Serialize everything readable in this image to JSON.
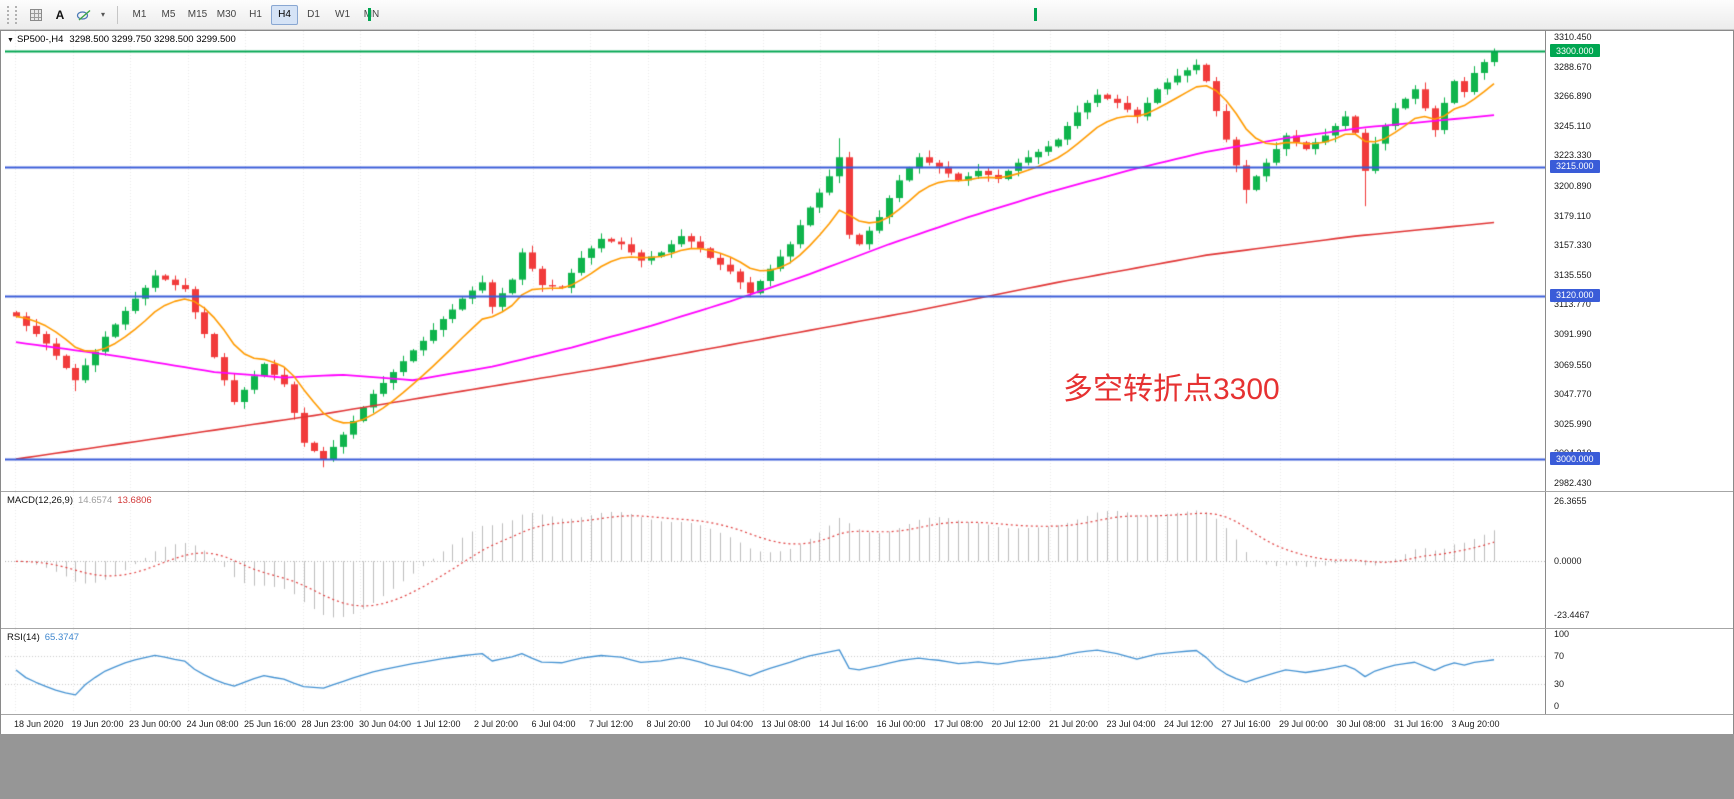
{
  "toolbar": {
    "a_button_label": "A",
    "timeframes": [
      "M1",
      "M5",
      "M15",
      "M30",
      "H1",
      "H4",
      "D1",
      "W1",
      "MN"
    ],
    "active_timeframe": "H4"
  },
  "chart_title": {
    "symbol": "SP500-,H4",
    "ohlc": "3298.500 3299.750 3298.500 3299.500"
  },
  "annotation": {
    "text": "多空转折点3300",
    "color": "#e63232"
  },
  "indicators": {
    "macd": {
      "label": "MACD(12,26,9)",
      "value_main": "14.6574",
      "value_signal": "13.6806"
    },
    "rsi": {
      "label": "RSI(14)",
      "value": "65.3747"
    }
  },
  "chart_data": {
    "type": "candlestick+indicators",
    "symbol": "SP500-",
    "timeframe": "H4",
    "price_range": [
      2982.43,
      3310.45
    ],
    "price_ticks": [
      {
        "v": 3310.45,
        "t": "3310.450"
      },
      {
        "v": 3288.67,
        "t": "3288.670"
      },
      {
        "v": 3266.89,
        "t": "3266.890"
      },
      {
        "v": 3245.11,
        "t": "3245.110"
      },
      {
        "v": 3223.33,
        "t": "3223.330"
      },
      {
        "v": 3200.89,
        "t": "3200.890"
      },
      {
        "v": 3179.11,
        "t": "3179.110"
      },
      {
        "v": 3157.33,
        "t": "3157.330"
      },
      {
        "v": 3135.55,
        "t": "3135.550"
      },
      {
        "v": 3113.77,
        "t": "3113.770"
      },
      {
        "v": 3091.99,
        "t": "3091.990"
      },
      {
        "v": 3069.55,
        "t": "3069.550"
      },
      {
        "v": 3047.77,
        "t": "3047.770"
      },
      {
        "v": 3025.99,
        "t": "3025.990"
      },
      {
        "v": 3004.21,
        "t": "3004.210"
      },
      {
        "v": 2982.43,
        "t": "2982.430"
      }
    ],
    "time_labels": [
      "18 Jun 2020",
      "19 Jun 20:00",
      "23 Jun 00:00",
      "24 Jun 08:00",
      "25 Jun 16:00",
      "28 Jun 23:00",
      "30 Jun 04:00",
      "1 Jul 12:00",
      "2 Jul 20:00",
      "6 Jul 04:00",
      "7 Jul 12:00",
      "8 Jul 20:00",
      "10 Jul 04:00",
      "13 Jul 08:00",
      "14 Jul 16:00",
      "16 Jul 00:00",
      "17 Jul 08:00",
      "20 Jul 12:00",
      "21 Jul 20:00",
      "23 Jul 04:00",
      "24 Jul 12:00",
      "27 Jul 16:00",
      "29 Jul 00:00",
      "30 Jul 08:00",
      "31 Jul 16:00",
      "3 Aug 20:00"
    ],
    "levels": [
      {
        "value": 3300,
        "label": "3300.000",
        "color": "#00a651"
      },
      {
        "value": 3215,
        "label": "3215.000",
        "color": "#3a5cd8"
      },
      {
        "value": 3120,
        "label": "3120.000",
        "color": "#3a5cd8"
      },
      {
        "value": 3000,
        "label": "3000.000",
        "color": "#3a5cd8"
      }
    ],
    "open_first": 3108,
    "closes": [
      3105,
      3098,
      3092,
      3085,
      3076,
      3067,
      3058,
      3069,
      3079,
      3090,
      3099,
      3109,
      3118,
      3126,
      3135,
      3132,
      3128,
      3125,
      3108,
      3092,
      3075,
      3058,
      3042,
      3051,
      3061,
      3070,
      3062,
      3055,
      3034,
      3012,
      3006,
      3000,
      3009,
      3018,
      3028,
      3038,
      3048,
      3056,
      3064,
      3072,
      3080,
      3087,
      3095,
      3103,
      3110,
      3118,
      3124,
      3130,
      3112,
      3122,
      3132,
      3152,
      3140,
      3128,
      3127,
      3126,
      3137,
      3148,
      3155,
      3162,
      3160,
      3158,
      3152,
      3146,
      3149,
      3152,
      3158,
      3164,
      3160,
      3155,
      3148,
      3143,
      3138,
      3130,
      3122,
      3131,
      3140,
      3149,
      3158,
      3172,
      3185,
      3196,
      3208,
      3222,
      3165,
      3158,
      3168,
      3178,
      3192,
      3205,
      3214,
      3222,
      3218,
      3215,
      3210,
      3205,
      3208,
      3212,
      3209,
      3206,
      3212,
      3218,
      3222,
      3226,
      3230,
      3235,
      3245,
      3255,
      3262,
      3268,
      3265,
      3262,
      3257,
      3252,
      3262,
      3272,
      3277,
      3282,
      3286,
      3290,
      3278,
      3256,
      3235,
      3216,
      3198,
      3208,
      3218,
      3228,
      3238,
      3233,
      3228,
      3233,
      3238,
      3245,
      3252,
      3240,
      3212,
      3232,
      3245,
      3258,
      3265,
      3272,
      3258,
      3242,
      3262,
      3278,
      3270,
      3284,
      3292,
      3299.5
    ],
    "wick_overrides": {
      "6": {
        "low": 3050
      },
      "31": {
        "low": 2994
      },
      "83": {
        "high": 3236
      },
      "124": {
        "low": 3188
      },
      "136": {
        "low": 3186
      },
      "149": {
        "high": 3302
      }
    },
    "colors": {
      "up": "#0fb44c",
      "down": "#f13b3b"
    },
    "ma_fast": {
      "type": "ema",
      "period": 9,
      "color": "#ff9b00"
    },
    "ma_mid": {
      "color": "#ff00ff",
      "anchors": [
        [
          0,
          3086
        ],
        [
          10,
          3076
        ],
        [
          20,
          3064
        ],
        [
          27,
          3060
        ],
        [
          33,
          3062
        ],
        [
          40,
          3058
        ],
        [
          48,
          3068
        ],
        [
          56,
          3082
        ],
        [
          64,
          3098
        ],
        [
          72,
          3116
        ],
        [
          80,
          3136
        ],
        [
          88,
          3158
        ],
        [
          96,
          3178
        ],
        [
          104,
          3196
        ],
        [
          112,
          3212
        ],
        [
          120,
          3226
        ],
        [
          128,
          3236
        ],
        [
          136,
          3244
        ],
        [
          142,
          3248
        ],
        [
          149,
          3253
        ]
      ]
    },
    "ma_slow": {
      "color": "#e03535",
      "anchors": [
        [
          0,
          3000
        ],
        [
          15,
          3016
        ],
        [
          30,
          3032
        ],
        [
          45,
          3050
        ],
        [
          60,
          3068
        ],
        [
          75,
          3088
        ],
        [
          90,
          3108
        ],
        [
          105,
          3130
        ],
        [
          120,
          3150
        ],
        [
          135,
          3164
        ],
        [
          149,
          3174
        ]
      ]
    },
    "macd": {
      "params": [
        12,
        26,
        9
      ],
      "histogram_color": "#bdbdbd",
      "signal_color": "#e04040",
      "range": [
        -26.5,
        28.5
      ],
      "ticks": [
        {
          "v": 26.3655,
          "t": "26.3655"
        },
        {
          "v": 0,
          "t": "0.0000"
        },
        {
          "v": -23.4467,
          "t": "-23.4467"
        }
      ]
    },
    "rsi": {
      "period": 14,
      "color": "#4492d2",
      "levels": [
        70,
        30
      ],
      "ticks": [
        {
          "v": 100,
          "t": "100"
        },
        {
          "v": 70,
          "t": "70"
        },
        {
          "v": 30,
          "t": "30"
        },
        {
          "v": 0,
          "t": "0"
        }
      ]
    }
  }
}
